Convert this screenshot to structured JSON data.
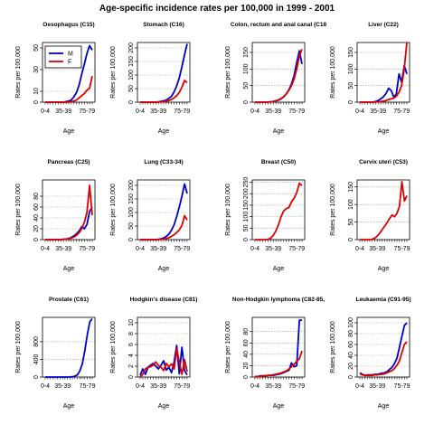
{
  "figure": {
    "title": "Age-specific incidence rates per 100,000 in 1999 - 2001"
  },
  "chart_data": [
    {
      "type": "line",
      "title": "Oesophagus (C15)",
      "xlabel": "Age",
      "ylabel": "Rates per 100,000",
      "x_ticks": [
        "0-4",
        "35-39",
        "75-79"
      ],
      "ylim": [
        0,
        55
      ],
      "y_ticks": [
        0,
        10,
        30,
        50
      ],
      "legend": {
        "placement": "top-left",
        "entries": [
          "M",
          "F"
        ]
      },
      "series": [
        {
          "name": "M",
          "color": "#0000cc",
          "values": [
            0,
            0,
            0,
            0,
            0,
            0,
            0,
            0,
            0.5,
            1,
            2,
            5,
            9,
            16,
            26,
            35,
            45,
            52,
            48
          ]
        },
        {
          "name": "F",
          "color": "#dd0000",
          "values": [
            0,
            0,
            0,
            0,
            0,
            0,
            0,
            0,
            0,
            0,
            0.5,
            1,
            2,
            4,
            6,
            8,
            11,
            13,
            24
          ]
        }
      ]
    },
    {
      "type": "line",
      "title": "Stomach (C16)",
      "xlabel": "Age",
      "ylabel": "Rates per 100,000",
      "x_ticks": [
        "0-4",
        "35-39",
        "75-79"
      ],
      "ylim": [
        0,
        220
      ],
      "y_ticks": [
        0,
        50,
        100,
        150,
        200
      ],
      "series": [
        {
          "name": "M",
          "color": "#0000cc",
          "values": [
            0,
            0,
            0,
            0,
            0,
            0,
            0,
            1,
            3,
            5,
            8,
            14,
            22,
            38,
            60,
            90,
            130,
            175,
            215
          ]
        },
        {
          "name": "F",
          "color": "#dd0000",
          "values": [
            0,
            0,
            0,
            0,
            0,
            0,
            0,
            0.5,
            1,
            2,
            4,
            6,
            10,
            16,
            24,
            36,
            55,
            80,
            72
          ]
        }
      ]
    },
    {
      "type": "line",
      "title": "Colon, rectum and anal canal (C18",
      "xlabel": "Age",
      "ylabel": "Rates per 100,000",
      "x_ticks": [
        "0-4",
        "35-39",
        "75-79"
      ],
      "ylim": [
        0,
        180
      ],
      "y_ticks": [
        0,
        50,
        100,
        150
      ],
      "series": [
        {
          "name": "M",
          "color": "#0000cc",
          "values": [
            0,
            0,
            0,
            0,
            0,
            0,
            1,
            2,
            4,
            6,
            10,
            16,
            25,
            38,
            55,
            80,
            120,
            155,
            115
          ]
        },
        {
          "name": "F",
          "color": "#dd0000",
          "values": [
            0,
            0,
            0,
            0,
            0,
            0,
            1,
            2,
            4,
            7,
            11,
            17,
            25,
            36,
            50,
            70,
            100,
            140,
            160
          ]
        }
      ]
    },
    {
      "type": "line",
      "title": "Liver (C22)",
      "xlabel": "Age",
      "ylabel": "Rates per 100,000",
      "x_ticks": [
        "0-4",
        "35-39",
        "75-79"
      ],
      "ylim": [
        0,
        180
      ],
      "y_ticks": [
        0,
        50,
        100,
        150
      ],
      "series": [
        {
          "name": "M",
          "color": "#0000cc",
          "values": [
            0,
            0,
            0,
            0,
            0,
            0,
            2,
            5,
            10,
            16,
            26,
            42,
            35,
            15,
            25,
            85,
            60,
            110,
            85
          ]
        },
        {
          "name": "F",
          "color": "#dd0000",
          "values": [
            0,
            0,
            0,
            0,
            0,
            0,
            0.5,
            1,
            2,
            3,
            5,
            8,
            10,
            12,
            18,
            30,
            50,
            100,
            180
          ]
        }
      ]
    },
    {
      "type": "line",
      "title": "Pancreas (C25)",
      "xlabel": "Age",
      "ylabel": "Rates per 100,000",
      "x_ticks": [
        "0-4",
        "35-39",
        "75-79"
      ],
      "ylim": [
        0,
        110
      ],
      "y_ticks": [
        0,
        20,
        40,
        60,
        80
      ],
      "series": [
        {
          "name": "M",
          "color": "#0000cc",
          "values": [
            0,
            0,
            0,
            0,
            0,
            0,
            0,
            0.5,
            1,
            2,
            4,
            7,
            11,
            16,
            24,
            20,
            28,
            52,
            60
          ]
        },
        {
          "name": "F",
          "color": "#dd0000",
          "values": [
            0,
            0,
            0,
            0,
            0,
            0,
            0,
            0.5,
            1,
            1.5,
            3,
            5,
            8,
            13,
            20,
            32,
            50,
            100,
            45
          ]
        }
      ]
    },
    {
      "type": "line",
      "title": "Lung (C33-34)",
      "xlabel": "Age",
      "ylabel": "Rates per 100,000",
      "x_ticks": [
        "0-4",
        "35-39",
        "75-79"
      ],
      "ylim": [
        0,
        220
      ],
      "y_ticks": [
        0,
        50,
        100,
        150,
        200
      ],
      "series": [
        {
          "name": "M",
          "color": "#0000cc",
          "values": [
            0,
            0,
            0,
            0,
            0,
            0,
            0,
            1,
            3,
            6,
            12,
            20,
            35,
            55,
            85,
            120,
            160,
            205,
            170
          ]
        },
        {
          "name": "F",
          "color": "#dd0000",
          "values": [
            0,
            0,
            0,
            0,
            0,
            0,
            0,
            0.5,
            1,
            2,
            4,
            7,
            12,
            18,
            26,
            36,
            52,
            88,
            72
          ]
        }
      ]
    },
    {
      "type": "line",
      "title": "Breast (C50)",
      "xlabel": "Age",
      "ylabel": "Rates per 100,000",
      "x_ticks": [
        "0-4",
        "35-39",
        "75-79"
      ],
      "ylim": [
        0,
        260
      ],
      "y_ticks": [
        0,
        50,
        100,
        150,
        200,
        250
      ],
      "series": [
        {
          "name": "F",
          "color": "#dd0000",
          "values": [
            0,
            0,
            0,
            0,
            0,
            1,
            6,
            18,
            38,
            65,
            100,
            125,
            135,
            140,
            165,
            180,
            205,
            245,
            235
          ]
        }
      ]
    },
    {
      "type": "line",
      "title": "Cervix uteri (C53)",
      "xlabel": "Age",
      "ylabel": "Rates per 100,000",
      "x_ticks": [
        "0-4",
        "35-39",
        "75-79"
      ],
      "ylim": [
        0,
        170
      ],
      "y_ticks": [
        0,
        50,
        100,
        150
      ],
      "series": [
        {
          "name": "F",
          "color": "#dd0000",
          "values": [
            0,
            0,
            0,
            0,
            0,
            1,
            4,
            10,
            18,
            28,
            38,
            48,
            60,
            70,
            65,
            75,
            95,
            165,
            110,
            125
          ]
        }
      ]
    },
    {
      "type": "line",
      "title": "Prostate (C61)",
      "xlabel": "Age",
      "ylabel": "Rates per 100,000",
      "x_ticks": [
        "0-4",
        "35-39",
        "75-79"
      ],
      "ylim": [
        0,
        1350
      ],
      "y_ticks": [
        0,
        400,
        800
      ],
      "series": [
        {
          "name": "M",
          "color": "#0000cc",
          "values": [
            0,
            0,
            0,
            0,
            0,
            0,
            0,
            0,
            0,
            0,
            2,
            6,
            18,
            50,
            140,
            300,
            600,
            950,
            1250,
            1320
          ]
        }
      ]
    },
    {
      "type": "line",
      "title": "Hodgkin's disease (C81)",
      "xlabel": "Age",
      "ylabel": "Rates per 100,000",
      "x_ticks": [
        "0-4",
        "35-39",
        "75-79"
      ],
      "ylim": [
        0,
        11
      ],
      "y_ticks": [
        0,
        2,
        4,
        6,
        8,
        10
      ],
      "series": [
        {
          "name": "M",
          "color": "#0000cc",
          "values": [
            0.3,
            1.5,
            0.5,
            1.8,
            2.2,
            2.5,
            2,
            1.5,
            2.2,
            3,
            1.3,
            1.8,
            0.8,
            2.8,
            5.8,
            0.6,
            5.5,
            1.2,
            0.4
          ]
        },
        {
          "name": "F",
          "color": "#dd0000",
          "values": [
            0,
            0.5,
            1.5,
            1.8,
            1.9,
            2.2,
            2.8,
            2.1,
            1.8,
            1.2,
            2.5,
            1.9,
            2.4,
            1.5,
            5.2,
            2.8,
            0.5,
            3.2,
            1
          ]
        }
      ]
    },
    {
      "type": "line",
      "title": "Non-Hodgkin lymphoma (C82-85,",
      "xlabel": "Age",
      "ylabel": "Rates per 100,000",
      "x_ticks": [
        "0-4",
        "35-39",
        "75-79"
      ],
      "ylim": [
        0,
        105
      ],
      "y_ticks": [
        0,
        20,
        40,
        60,
        80
      ],
      "series": [
        {
          "name": "M",
          "color": "#0000cc",
          "values": [
            1,
            1,
            2,
            2,
            2,
            3,
            3,
            3,
            4,
            5,
            6,
            8,
            10,
            12,
            25,
            18,
            20,
            100,
            100
          ]
        },
        {
          "name": "F",
          "color": "#dd0000",
          "values": [
            0,
            1,
            1,
            2,
            2,
            3,
            3,
            4,
            5,
            6,
            7,
            9,
            11,
            14,
            18,
            22,
            28,
            32,
            46
          ]
        }
      ]
    },
    {
      "type": "line",
      "title": "Leukaemia (C91-95)",
      "xlabel": "Age",
      "ylabel": "Rates per 100,000",
      "x_ticks": [
        "0-4",
        "35-39",
        "75-79"
      ],
      "ylim": [
        0,
        110
      ],
      "y_ticks": [
        0,
        20,
        40,
        60,
        80,
        100
      ],
      "series": [
        {
          "name": "M",
          "color": "#0000cc",
          "values": [
            8,
            5,
            3,
            4,
            4,
            4,
            5,
            5,
            6,
            7,
            8,
            10,
            14,
            18,
            25,
            35,
            55,
            75,
            95,
            100
          ]
        },
        {
          "name": "F",
          "color": "#dd0000",
          "values": [
            6,
            4,
            3,
            3,
            3,
            3,
            4,
            4,
            5,
            5,
            6,
            8,
            10,
            12,
            16,
            22,
            30,
            45,
            60,
            65
          ]
        }
      ]
    }
  ]
}
